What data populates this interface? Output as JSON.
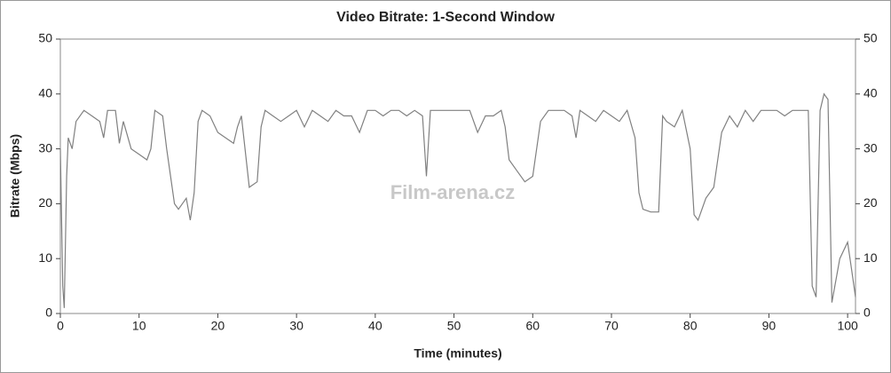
{
  "chart_data": {
    "type": "line",
    "title": "Video Bitrate: 1-Second Window",
    "x_label": "Time (minutes)",
    "y_label": "Bitrate (Mbps)",
    "watermark": "Film-arena.cz",
    "color": "#808080",
    "xlim": [
      0,
      101
    ],
    "xticks": [
      0,
      10,
      20,
      30,
      40,
      50,
      60,
      70,
      80,
      90,
      100
    ],
    "ylim": [
      0,
      50
    ],
    "yticks": [
      0,
      10,
      20,
      30,
      40,
      50
    ],
    "y2lim": [
      0,
      50
    ],
    "y2ticks": [
      0,
      10,
      20,
      30,
      40,
      50
    ],
    "x": [
      0,
      0.3,
      0.5,
      0.8,
      1,
      1.5,
      2,
      3,
      4,
      5,
      5.5,
      6,
      7,
      7.5,
      8,
      9,
      10,
      11,
      11.5,
      12,
      13,
      13.5,
      14,
      14.5,
      15,
      16,
      16.5,
      17,
      17.5,
      18,
      19,
      20,
      21,
      22,
      22.5,
      23,
      24,
      25,
      25.5,
      26,
      27,
      28,
      29,
      30,
      31,
      32,
      33,
      34,
      35,
      36,
      37,
      38,
      39,
      40,
      41,
      42,
      43,
      44,
      45,
      46,
      46.5,
      47,
      48,
      49,
      50,
      51,
      52,
      53,
      54,
      55,
      56,
      56.5,
      57,
      58,
      59,
      60,
      61,
      62,
      63,
      64,
      65,
      65.5,
      66,
      67,
      68,
      69,
      70,
      71,
      72,
      73,
      73.5,
      74,
      75,
      76,
      76.5,
      77,
      78,
      79,
      80,
      80.5,
      81,
      82,
      83,
      84,
      85,
      86,
      87,
      88,
      89,
      90,
      91,
      92,
      93,
      94,
      95,
      95.5,
      96,
      96.5,
      97,
      97.5,
      98,
      99,
      100,
      100.5,
      101
    ],
    "values": [
      30,
      5,
      1,
      25,
      32,
      30,
      35,
      37,
      36,
      35,
      32,
      37,
      37,
      31,
      35,
      30,
      29,
      28,
      30,
      37,
      36,
      30,
      25,
      20,
      19,
      21,
      17,
      22,
      35,
      37,
      36,
      33,
      32,
      31,
      34,
      36,
      23,
      24,
      34,
      37,
      36,
      35,
      36,
      37,
      34,
      37,
      36,
      35,
      37,
      36,
      36,
      33,
      37,
      37,
      36,
      37,
      37,
      36,
      37,
      36,
      25,
      37,
      37,
      37,
      37,
      37,
      37,
      33,
      36,
      36,
      37,
      34,
      28,
      26,
      24,
      25,
      35,
      37,
      37,
      37,
      36,
      32,
      37,
      36,
      35,
      37,
      36,
      35,
      37,
      32,
      22,
      19,
      18.5,
      18.5,
      36,
      35,
      34,
      37,
      30,
      18,
      17,
      21,
      23,
      33,
      36,
      34,
      37,
      35,
      37,
      37,
      37,
      36,
      37,
      37,
      37,
      5,
      3,
      37,
      40,
      39,
      2,
      10,
      13,
      8,
      3
    ]
  }
}
